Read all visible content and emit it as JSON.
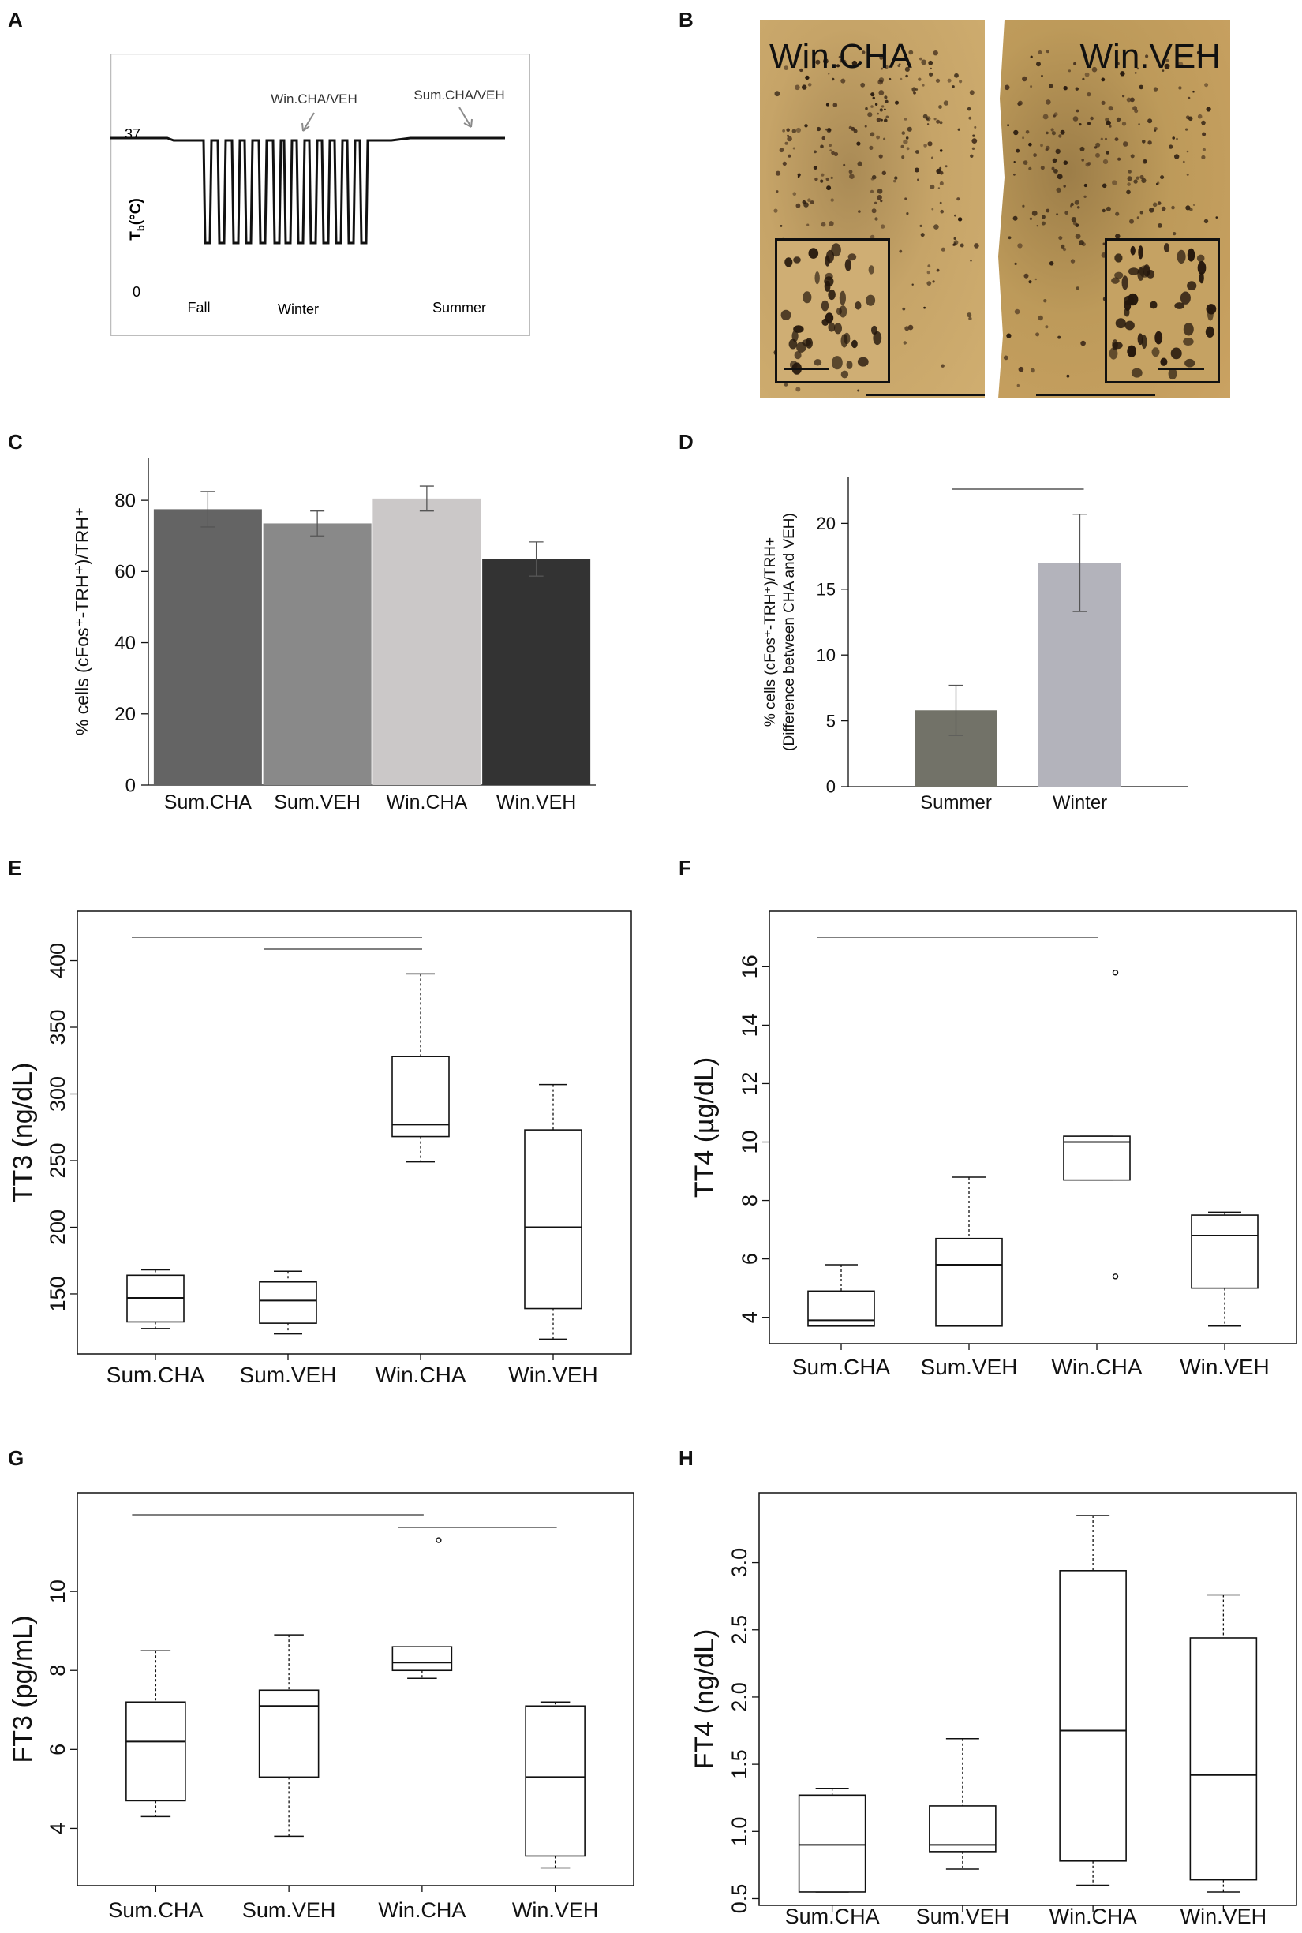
{
  "panel_labels": {
    "a": "A",
    "b": "B",
    "c": "C",
    "d": "D",
    "e": "E",
    "f": "F",
    "g": "G",
    "h": "H"
  },
  "panel_a": {
    "ytick_top": "37",
    "ytick_bottom": "0",
    "ylabel_main": "T",
    "ylabel_sub": "b",
    "ylabel_unit": "(°C)",
    "annotation_winter": "Win.CHA/VEH",
    "annotation_summer": "Sum.CHA/VEH",
    "season_fall": "Fall",
    "season_winter": "Winter",
    "season_summer": "Summer"
  },
  "panel_b": {
    "left_title": "Win.CHA",
    "right_title": "Win.VEH"
  },
  "colors": {
    "sum_cha": "#646464",
    "sum_veh": "#898989",
    "win_cha": "#cbc8c8",
    "win_veh": "#333333",
    "summer": "#727268",
    "winter": "#b3b3bb",
    "tissue": "#c49a52"
  },
  "chart_data": [
    {
      "id": "C",
      "type": "bar",
      "categories": [
        "Sum.CHA",
        "Sum.VEH",
        "Win.CHA",
        "Win.VEH"
      ],
      "values": [
        77.5,
        73.5,
        80.5,
        63.5
      ],
      "error": [
        5,
        3.5,
        3.5,
        4.8
      ],
      "ylabel": "% cells  (cFos⁺-TRH⁺)/TRH⁺",
      "ylim": [
        0,
        92
      ],
      "yticks": [
        0,
        20,
        40,
        60,
        80
      ]
    },
    {
      "id": "D",
      "type": "bar",
      "categories": [
        "Summer",
        "Winter"
      ],
      "values": [
        5.8,
        17
      ],
      "error": [
        1.9,
        3.7
      ],
      "ylabel": "% cells (cFos⁺-TRH⁺)/TRH+",
      "ylabel2": "(Difference between CHA and VEH)",
      "ylim": [
        0,
        23.5
      ],
      "yticks": [
        0,
        5,
        10,
        15,
        20
      ],
      "significance": [
        [
          0,
          1
        ]
      ]
    },
    {
      "id": "E",
      "type": "box",
      "categories": [
        "Sum.CHA",
        "Sum.VEH",
        "Win.CHA",
        "Win.VEH"
      ],
      "boxes": [
        {
          "min": 124,
          "q1": 129,
          "median": 147,
          "q3": 164,
          "max": 168
        },
        {
          "min": 120,
          "q1": 128,
          "median": 145,
          "q3": 159,
          "max": 167
        },
        {
          "min": 249,
          "q1": 268,
          "median": 277,
          "q3": 328,
          "max": 390
        },
        {
          "min": 116,
          "q1": 139,
          "median": 200,
          "q3": 273,
          "max": 307
        }
      ],
      "ylabel": "TT3 (ng/dL)",
      "ylim": [
        105,
        437
      ],
      "yticks": [
        150,
        200,
        250,
        300,
        350,
        400
      ],
      "significance": [
        [
          0,
          2
        ],
        [
          1,
          2
        ]
      ]
    },
    {
      "id": "F",
      "type": "box",
      "categories": [
        "Sum.CHA",
        "Sum.VEH",
        "Win.CHA",
        "Win.VEH"
      ],
      "boxes": [
        {
          "min": 3.7,
          "q1": 3.7,
          "median": 3.9,
          "q3": 4.9,
          "max": 5.8
        },
        {
          "min": 3.7,
          "q1": 3.7,
          "median": 5.8,
          "q3": 6.7,
          "max": 8.8
        },
        {
          "min": 8.7,
          "q1": 8.7,
          "median": 10.0,
          "q3": 10.2,
          "max": 10.2,
          "outliers": [
            15.8,
            5.4
          ]
        },
        {
          "min": 3.7,
          "q1": 5.0,
          "median": 6.8,
          "q3": 7.5,
          "max": 7.6
        }
      ],
      "ylabel": "TT4 (µg/dL)",
      "ylim": [
        3.1,
        17.9
      ],
      "yticks": [
        4,
        6,
        8,
        10,
        12,
        14,
        16
      ],
      "significance": [
        [
          0,
          2
        ]
      ]
    },
    {
      "id": "G",
      "type": "box",
      "categories": [
        "Sum.CHA",
        "Sum.VEH",
        "Win.CHA",
        "Win.VEH"
      ],
      "boxes": [
        {
          "min": 4.3,
          "q1": 4.7,
          "median": 6.2,
          "q3": 7.2,
          "max": 8.5
        },
        {
          "min": 3.8,
          "q1": 5.3,
          "median": 7.1,
          "q3": 7.5,
          "max": 8.9
        },
        {
          "min": 7.8,
          "q1": 8.0,
          "median": 8.2,
          "q3": 8.6,
          "max": 8.6,
          "outliers": [
            11.3
          ]
        },
        {
          "min": 3.0,
          "q1": 3.3,
          "median": 5.3,
          "q3": 7.1,
          "max": 7.2
        }
      ],
      "ylabel": "FT3 (pg/mL)",
      "ylim": [
        2.55,
        12.5
      ],
      "yticks": [
        4,
        6,
        8,
        10
      ],
      "significance": [
        [
          0,
          2
        ],
        [
          2,
          3
        ]
      ]
    },
    {
      "id": "H",
      "type": "box",
      "categories": [
        "Sum.CHA",
        "Sum.VEH",
        "Win.CHA",
        "Win.VEH"
      ],
      "boxes": [
        {
          "min": 0.55,
          "q1": 0.55,
          "median": 0.9,
          "q3": 1.27,
          "max": 1.32
        },
        {
          "min": 0.72,
          "q1": 0.85,
          "median": 0.9,
          "q3": 1.19,
          "max": 1.69
        },
        {
          "min": 0.6,
          "q1": 0.78,
          "median": 1.75,
          "q3": 2.94,
          "max": 3.35
        },
        {
          "min": 0.55,
          "q1": 0.64,
          "median": 1.42,
          "q3": 2.44,
          "max": 2.76
        }
      ],
      "ylabel": "FT4 (ng/dL)",
      "ylim": [
        0.45,
        3.52
      ],
      "yticks": [
        0.5,
        1.0,
        1.5,
        2.0,
        2.5,
        3.0
      ],
      "significance": []
    }
  ]
}
